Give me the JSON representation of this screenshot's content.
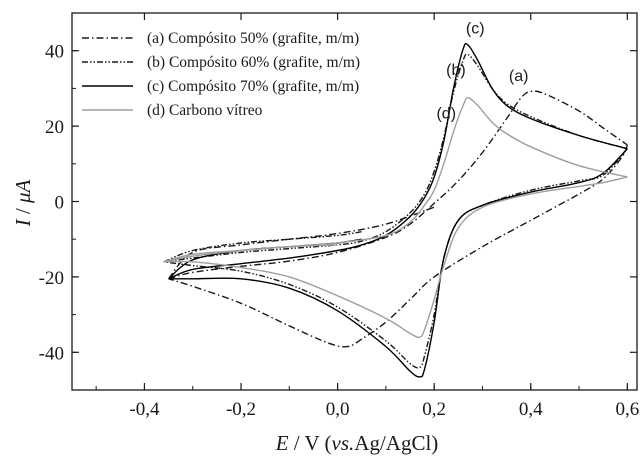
{
  "chart_data": {
    "type": "line",
    "xlabel": {
      "var": "E",
      "unit": " / V (",
      "vs": "vs.",
      "ref": "Ag/AgCl)"
    },
    "ylabel": {
      "var": "I",
      "sep": " / ",
      "unit": "μA"
    },
    "xlim": [
      -0.55,
      0.62
    ],
    "ylim": [
      -50,
      50
    ],
    "xticks": [
      {
        "value": -0.4,
        "label": "-0,4"
      },
      {
        "value": -0.2,
        "label": "-0,2"
      },
      {
        "value": 0.0,
        "label": "0,0"
      },
      {
        "value": 0.2,
        "label": "0,2"
      },
      {
        "value": 0.4,
        "label": "0,4"
      },
      {
        "value": 0.6,
        "label": "0,6"
      }
    ],
    "yticks": [
      {
        "value": -40,
        "label": "-40"
      },
      {
        "value": -20,
        "label": "-20"
      },
      {
        "value": 0,
        "label": "0"
      },
      {
        "value": 20,
        "label": "20"
      },
      {
        "value": 40,
        "label": "40"
      }
    ],
    "grid": false,
    "legend_position": "top-left",
    "series": [
      {
        "name": "(a) Compósito 50% (grafite, m/m)",
        "color": "#1a1a1a",
        "dash": "dashdot",
        "forward": [
          [
            -0.35,
            -20.5
          ],
          [
            -0.3,
            -18.8
          ],
          [
            -0.2,
            -17.2
          ],
          [
            -0.1,
            -15.8
          ],
          [
            0.0,
            -13.5
          ],
          [
            0.1,
            -9.5
          ],
          [
            0.15,
            -6.0
          ],
          [
            0.2,
            -0.5
          ],
          [
            0.25,
            5.5
          ],
          [
            0.3,
            13
          ],
          [
            0.35,
            22
          ],
          [
            0.38,
            27.5
          ],
          [
            0.4,
            29.2
          ],
          [
            0.43,
            28.5
          ],
          [
            0.5,
            24
          ],
          [
            0.55,
            19.5
          ],
          [
            0.6,
            15
          ]
        ],
        "reverse": [
          [
            0.6,
            15
          ],
          [
            0.59,
            12
          ],
          [
            0.55,
            6
          ],
          [
            0.5,
            2
          ],
          [
            0.45,
            -1.5
          ],
          [
            0.4,
            -5
          ],
          [
            0.3,
            -12
          ],
          [
            0.2,
            -20
          ],
          [
            0.15,
            -26
          ],
          [
            0.1,
            -32
          ],
          [
            0.05,
            -36.5
          ],
          [
            0.02,
            -38.5
          ],
          [
            -0.02,
            -37.5
          ],
          [
            -0.1,
            -33
          ],
          [
            -0.2,
            -27
          ],
          [
            -0.3,
            -22.5
          ],
          [
            -0.35,
            -20.5
          ]
        ],
        "return": [
          [
            -0.35,
            -20.5
          ],
          [
            -0.3,
            -13.5
          ],
          [
            -0.2,
            -11.5
          ],
          [
            -0.1,
            -10
          ],
          [
            0.0,
            -8.5
          ],
          [
            0.1,
            -6
          ],
          [
            0.2,
            -1.5
          ]
        ]
      },
      {
        "name": "(b) Compósito 60% (grafite, m/m)",
        "color": "#1a1a1a",
        "dash": "dashdotdot",
        "forward": [
          [
            -0.36,
            -16
          ],
          [
            -0.3,
            -15
          ],
          [
            -0.2,
            -13.5
          ],
          [
            -0.1,
            -12.5
          ],
          [
            0.0,
            -11.5
          ],
          [
            0.05,
            -10.5
          ],
          [
            0.1,
            -8
          ],
          [
            0.15,
            -3
          ],
          [
            0.18,
            2
          ],
          [
            0.2,
            8
          ],
          [
            0.22,
            17
          ],
          [
            0.24,
            29
          ],
          [
            0.26,
            37.5
          ],
          [
            0.27,
            39
          ],
          [
            0.29,
            36
          ],
          [
            0.32,
            30
          ],
          [
            0.35,
            26
          ],
          [
            0.4,
            22.5
          ],
          [
            0.5,
            17.5
          ],
          [
            0.6,
            14
          ]
        ],
        "reverse": [
          [
            0.6,
            14
          ],
          [
            0.55,
            7
          ],
          [
            0.5,
            5.5
          ],
          [
            0.4,
            3
          ],
          [
            0.3,
            -1
          ],
          [
            0.25,
            -5
          ],
          [
            0.22,
            -15
          ],
          [
            0.2,
            -30
          ],
          [
            0.18,
            -41
          ],
          [
            0.17,
            -44
          ],
          [
            0.15,
            -43
          ],
          [
            0.1,
            -37
          ],
          [
            0.0,
            -28
          ],
          [
            -0.1,
            -22
          ],
          [
            -0.2,
            -18.5
          ],
          [
            -0.3,
            -17
          ],
          [
            -0.36,
            -16
          ]
        ],
        "return": [
          [
            -0.36,
            -16
          ],
          [
            -0.3,
            -13
          ],
          [
            -0.2,
            -11
          ],
          [
            -0.1,
            -10
          ],
          [
            0.0,
            -9
          ],
          [
            0.05,
            -8
          ]
        ]
      },
      {
        "name": "(c) Compósito 70% (grafite, m/m)",
        "color": "#000000",
        "dash": "solid",
        "forward": [
          [
            -0.35,
            -20.5
          ],
          [
            -0.3,
            -18
          ],
          [
            -0.2,
            -16.5
          ],
          [
            -0.1,
            -15
          ],
          [
            0.0,
            -13
          ],
          [
            0.05,
            -11.5
          ],
          [
            0.1,
            -9
          ],
          [
            0.15,
            -4
          ],
          [
            0.18,
            1
          ],
          [
            0.2,
            6.5
          ],
          [
            0.22,
            16
          ],
          [
            0.24,
            30
          ],
          [
            0.26,
            40.5
          ],
          [
            0.27,
            41.5
          ],
          [
            0.29,
            37.5
          ],
          [
            0.32,
            30
          ],
          [
            0.35,
            25.5
          ],
          [
            0.4,
            22
          ],
          [
            0.5,
            17.5
          ],
          [
            0.6,
            14
          ]
        ],
        "reverse": [
          [
            0.6,
            14
          ],
          [
            0.55,
            7.5
          ],
          [
            0.5,
            5
          ],
          [
            0.4,
            2.5
          ],
          [
            0.3,
            -1
          ],
          [
            0.25,
            -5
          ],
          [
            0.22,
            -15
          ],
          [
            0.2,
            -32
          ],
          [
            0.18,
            -44.5
          ],
          [
            0.17,
            -46.5
          ],
          [
            0.15,
            -45
          ],
          [
            0.1,
            -38.5
          ],
          [
            0.0,
            -29
          ],
          [
            -0.1,
            -23
          ],
          [
            -0.2,
            -20.5
          ],
          [
            -0.3,
            -20.5
          ],
          [
            -0.35,
            -20.5
          ]
        ],
        "return": [
          [
            -0.35,
            -20.5
          ],
          [
            -0.3,
            -15.5
          ],
          [
            -0.2,
            -13
          ],
          [
            -0.1,
            -12
          ],
          [
            0.0,
            -11
          ],
          [
            0.05,
            -10
          ]
        ]
      },
      {
        "name": "(d) Carbono vítreo",
        "color": "#9e9e9e",
        "dash": "solid",
        "forward": [
          [
            -0.36,
            -16
          ],
          [
            -0.3,
            -14.5
          ],
          [
            -0.2,
            -13
          ],
          [
            -0.1,
            -12
          ],
          [
            0.0,
            -11
          ],
          [
            0.1,
            -9
          ],
          [
            0.15,
            -5.5
          ],
          [
            0.18,
            -1
          ],
          [
            0.2,
            3
          ],
          [
            0.22,
            10
          ],
          [
            0.24,
            18.5
          ],
          [
            0.26,
            25.5
          ],
          [
            0.27,
            27.5
          ],
          [
            0.29,
            25.5
          ],
          [
            0.32,
            21
          ],
          [
            0.35,
            18
          ],
          [
            0.4,
            14.5
          ],
          [
            0.5,
            9.5
          ],
          [
            0.6,
            6.5
          ]
        ],
        "reverse": [
          [
            0.6,
            6.5
          ],
          [
            0.55,
            5
          ],
          [
            0.5,
            4
          ],
          [
            0.4,
            2
          ],
          [
            0.3,
            -1.5
          ],
          [
            0.25,
            -7
          ],
          [
            0.22,
            -17
          ],
          [
            0.2,
            -26
          ],
          [
            0.18,
            -34
          ],
          [
            0.17,
            -36
          ],
          [
            0.15,
            -35
          ],
          [
            0.1,
            -31
          ],
          [
            0.0,
            -25
          ],
          [
            -0.1,
            -20
          ],
          [
            -0.2,
            -17.5
          ],
          [
            -0.3,
            -16
          ],
          [
            -0.36,
            -16
          ]
        ],
        "return": [
          [
            -0.36,
            -16
          ],
          [
            -0.3,
            -14
          ],
          [
            -0.2,
            -13
          ],
          [
            -0.1,
            -12
          ],
          [
            0.0,
            -11.5
          ]
        ]
      }
    ],
    "annotations": [
      {
        "text": "(c)",
        "x": 0.285,
        "y": 44.5
      },
      {
        "text": "(b)",
        "x": 0.245,
        "y": 33.5
      },
      {
        "text": "(a)",
        "x": 0.375,
        "y": 32
      },
      {
        "text": "(d)",
        "x": 0.225,
        "y": 22
      }
    ]
  }
}
